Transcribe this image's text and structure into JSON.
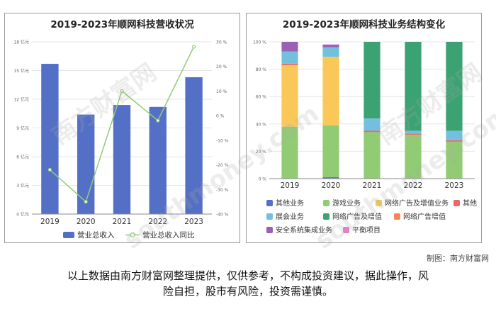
{
  "left_title": "2019-2023年顺网科技营收状况",
  "right_title": "2019-2023年顺网科技业务结构变化",
  "credit": "制图：南方财富网",
  "disclaimer_line1": "以上数据由南方财富网整理提供，仅供参考，不构成投资建议，据此操作，风",
  "disclaimer_line2": "险自担，股市有风险，投资需谨慎。",
  "watermark_text": "南方财富网",
  "watermark_url": "southmoney.com",
  "chart_data": [
    {
      "type": "bar",
      "categories": [
        "2019",
        "2020",
        "2021",
        "2022",
        "2023"
      ],
      "series": [
        {
          "name": "营业总收入",
          "type": "bar",
          "axis": "left",
          "color": "#5470c6",
          "values": [
            15.7,
            10.4,
            11.4,
            11.2,
            14.3
          ]
        },
        {
          "name": "营业总收入同比",
          "type": "line",
          "axis": "right",
          "color": "#91cc75",
          "values": [
            -22,
            -35,
            10,
            -2,
            28
          ]
        }
      ],
      "y_left": {
        "min": 0,
        "max": 18,
        "ticks": [
          "0 亿元",
          "3 亿元",
          "6 亿元",
          "9 亿元",
          "12 亿元",
          "15 亿元",
          "18 亿元"
        ]
      },
      "y_right": {
        "min": -40,
        "max": 30,
        "ticks": [
          "-40 %",
          "-30 %",
          "-20 %",
          "-10 %",
          "0 %",
          "10 %",
          "20 %",
          "30 %"
        ]
      },
      "legend_position": "bottom"
    },
    {
      "type": "bar",
      "stacked": true,
      "categories": [
        "2019",
        "2020",
        "2021",
        "2022",
        "2023"
      ],
      "y": {
        "min": 0,
        "max": 100,
        "ticks": [
          "0 %",
          "20 %",
          "40 %",
          "60 %",
          "80 %",
          "100 %"
        ]
      },
      "series": [
        {
          "name": "其他业务",
          "color": "#5470c6",
          "values": [
            0,
            1,
            0,
            0,
            0
          ]
        },
        {
          "name": "游戏业务",
          "color": "#91cc75",
          "values": [
            38,
            38,
            34,
            32,
            27
          ]
        },
        {
          "name": "网络广告及增值业务",
          "color": "#fac858",
          "values": [
            45,
            50,
            0,
            0,
            0
          ]
        },
        {
          "name": "其他",
          "color": "#ee6666",
          "values": [
            1,
            0,
            1,
            1,
            1
          ]
        },
        {
          "name": "展会业务",
          "color": "#73c0de",
          "values": [
            9,
            7,
            9,
            2,
            7
          ]
        },
        {
          "name": "网络广告及增值",
          "color": "#3ba272",
          "values": [
            0,
            0,
            56,
            65,
            65
          ]
        },
        {
          "name": "网络广告增值",
          "color": "#fc8452",
          "values": [
            0,
            0,
            0,
            0,
            0
          ]
        },
        {
          "name": "安全系统集成业务",
          "color": "#9a60b4",
          "values": [
            7,
            2,
            0,
            0,
            0
          ]
        },
        {
          "name": "平衡项目",
          "color": "#ea7ccc",
          "values": [
            0,
            0,
            0,
            0,
            0
          ]
        }
      ],
      "legend_position": "bottom"
    }
  ]
}
